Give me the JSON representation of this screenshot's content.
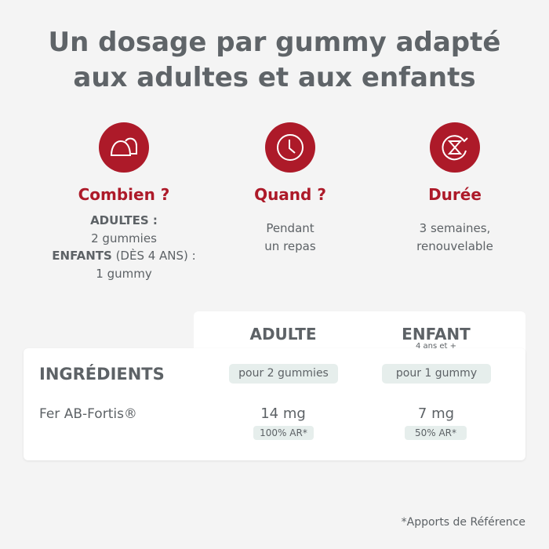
{
  "title": {
    "line1": "Un dosage par gummy adapté",
    "line2": "aux adultes et aux enfants"
  },
  "brand_color": "#ad1a29",
  "columns": [
    {
      "icon": "gummies-icon",
      "heading": "Combien ?",
      "adults_label": "ADULTES :",
      "adults_value": "2 gummies",
      "kids_label": "ENFANTS",
      "kids_age": " (DÈS 4 ANS) :",
      "kids_value": "1 gummy"
    },
    {
      "icon": "clock-icon",
      "heading": "Quand ?",
      "line1": "Pendant",
      "line2": "un repas"
    },
    {
      "icon": "hourglass-renew-icon",
      "heading": "Durée",
      "line1": "3 semaines,",
      "line2": "renouvelable"
    }
  ],
  "table": {
    "ingredients_header": "INGRÉDIENTS",
    "adult": {
      "header": "ADULTE",
      "dose": "pour 2 gummies"
    },
    "child": {
      "header": "ENFANT",
      "sub": "4 ans et +",
      "dose": "pour 1 gummy"
    },
    "rows": [
      {
        "name": "Fer AB-Fortis®",
        "adult": "14 mg",
        "adult_ar": "100% AR*",
        "child": "7 mg",
        "child_ar": "50% AR*"
      }
    ]
  },
  "footnote": "*Apports de Référence"
}
